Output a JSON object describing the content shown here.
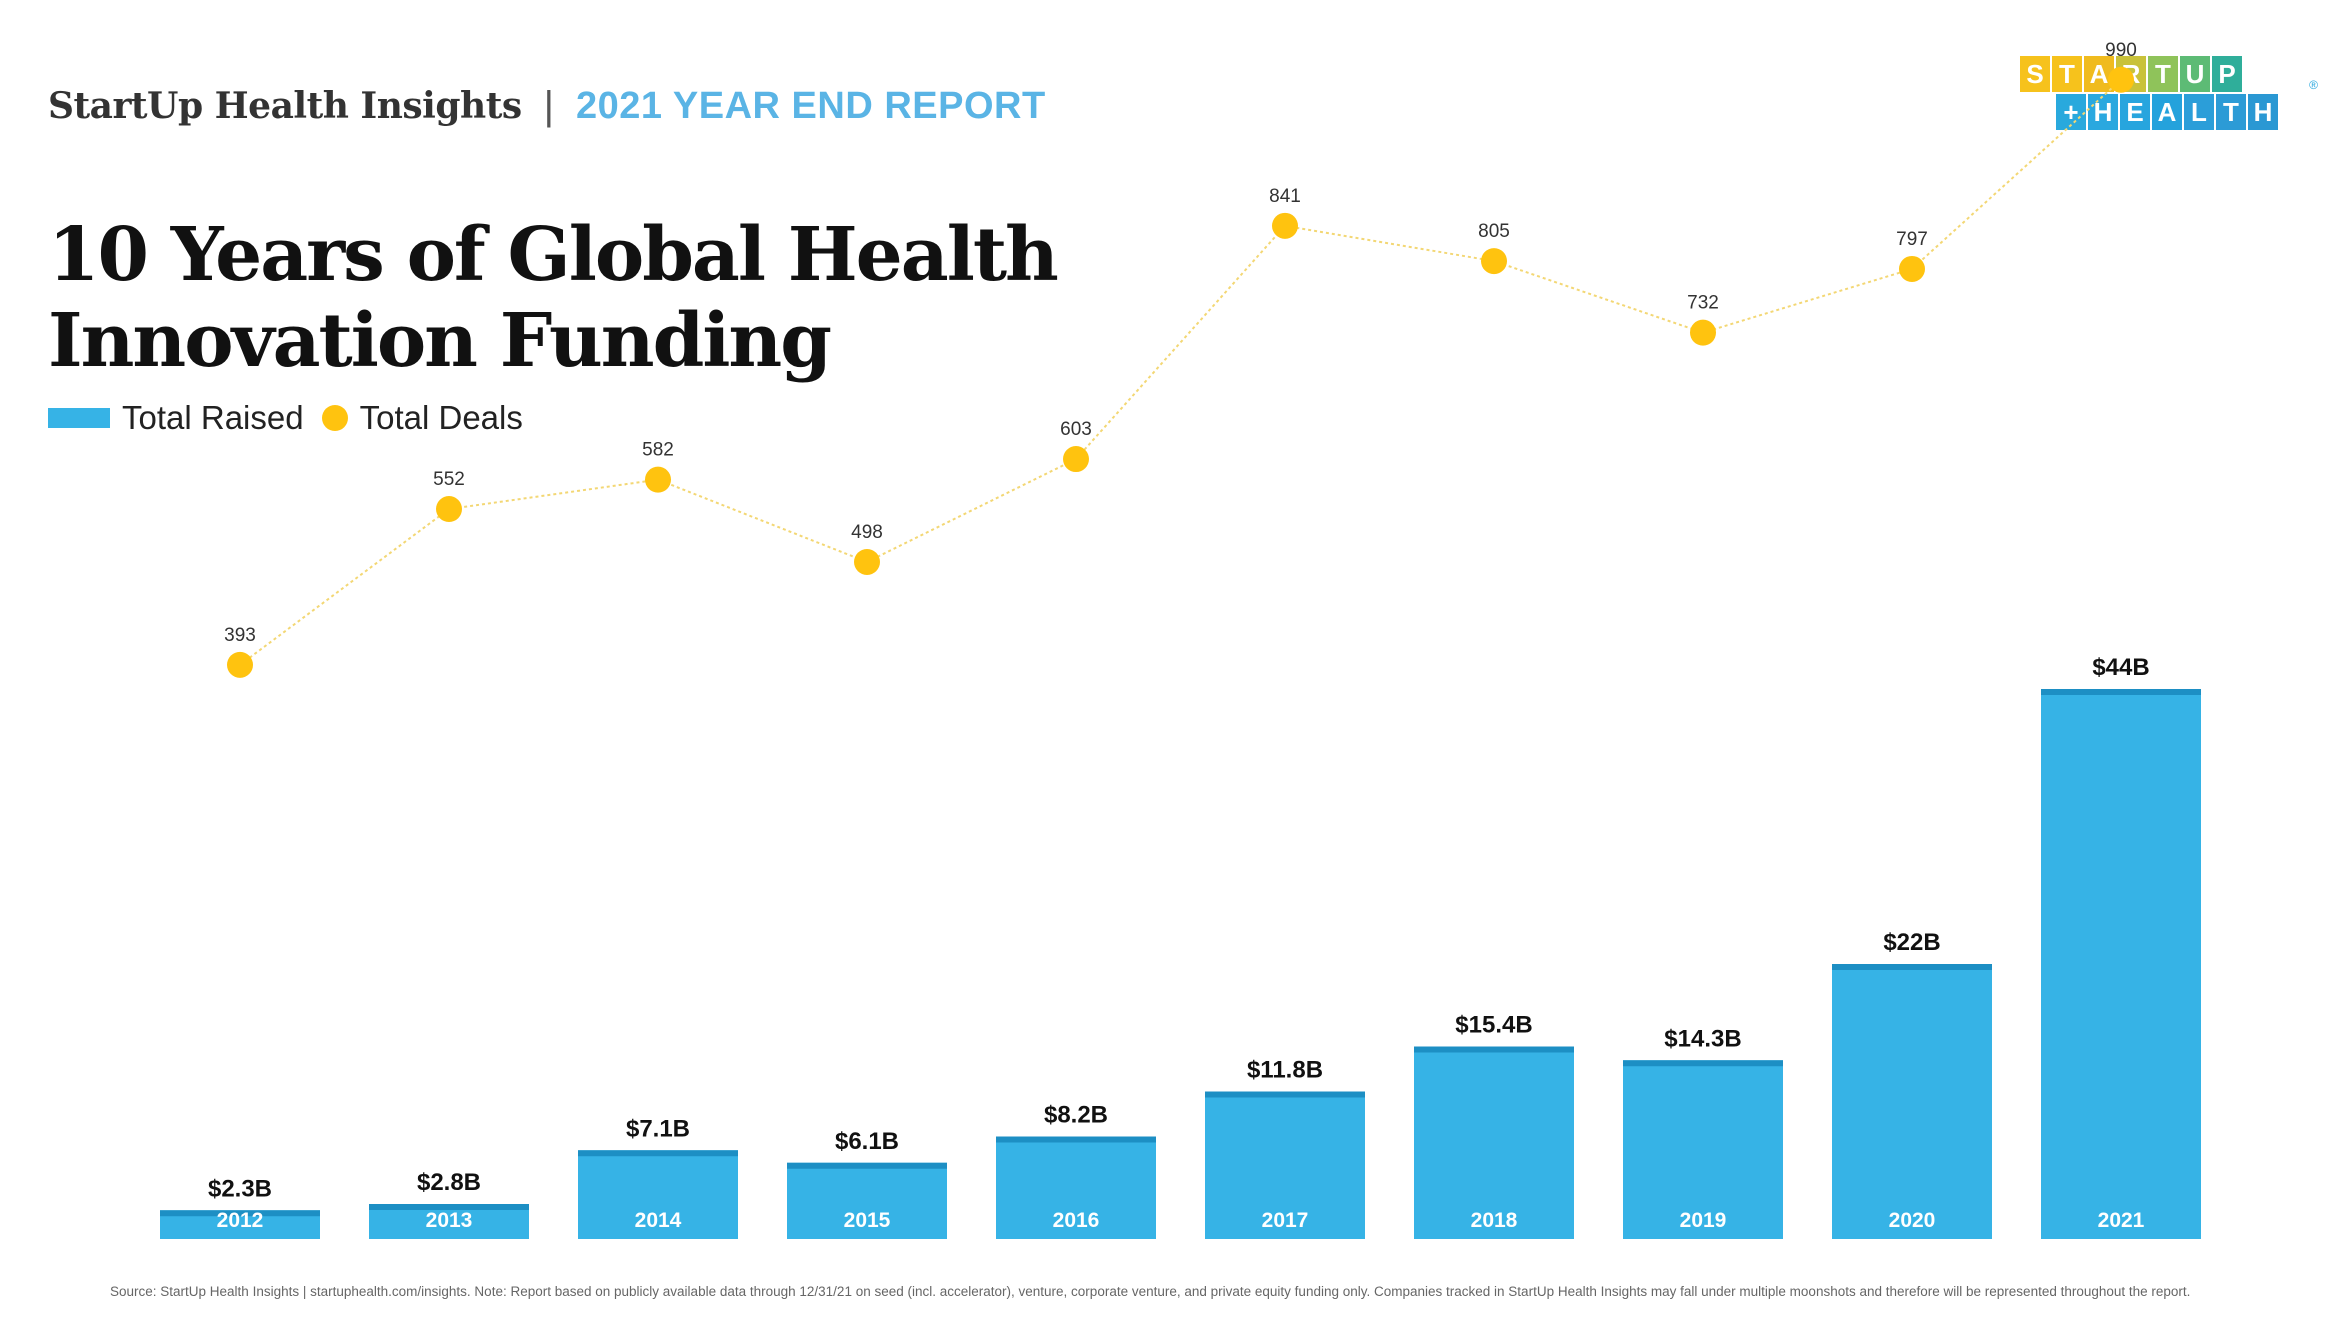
{
  "header": {
    "brand": "StartUp Health Insights",
    "separator": "|",
    "report": "2021 YEAR END REPORT"
  },
  "logo": {
    "row1": [
      "S",
      "T",
      "A",
      "R",
      "T",
      "U",
      "P"
    ],
    "row2": [
      "+",
      "H",
      "E",
      "A",
      "L",
      "T",
      "H"
    ],
    "registered": "®",
    "row1_colors": [
      "#f6c21c",
      "#f6c21c",
      "#f0bb1e",
      "#c9c23a",
      "#8fc35a",
      "#5dbb75",
      "#2fae9a"
    ],
    "row2_colors": [
      "#29a9dd",
      "#2aa8df",
      "#27a5de",
      "#24a2dc",
      "#2b9ed9",
      "#2c9bd6",
      "#2a98d3"
    ]
  },
  "title_line1": "10 Years of Global Health",
  "title_line2": "Innovation Funding",
  "legend": {
    "raised": "Total Raised",
    "deals": "Total Deals"
  },
  "colors": {
    "bar": "#36b3e6",
    "bar_top": "#1d8fc4",
    "deal_dot": "#ffc30f",
    "deal_line": "#f3d774",
    "report": "#5ab4e5"
  },
  "chart_data": {
    "type": "bar",
    "categories": [
      "2012",
      "2013",
      "2014",
      "2015",
      "2016",
      "2017",
      "2018",
      "2019",
      "2020",
      "2021"
    ],
    "series": [
      {
        "name": "Total Raised",
        "type": "bar",
        "values": [
          2.3,
          2.8,
          7.1,
          6.1,
          8.2,
          11.8,
          15.4,
          14.3,
          22,
          44
        ],
        "labels": [
          "$2.3B",
          "$2.8B",
          "$7.1B",
          "$6.1B",
          "$8.2B",
          "$11.8B",
          "$15.4B",
          "$14.3B",
          "$22B",
          "$44B"
        ],
        "unit": "$B"
      },
      {
        "name": "Total Deals",
        "type": "line",
        "values": [
          393,
          552,
          582,
          498,
          603,
          841,
          805,
          732,
          797,
          990
        ]
      }
    ],
    "grid": false,
    "legend_position": "top-left"
  },
  "footnote": "Source: StartUp Health Insights | startuphealth.com/insights. Note: Report based on publicly available data through 12/31/21 on seed (incl. accelerator), venture, corporate venture, and private equity funding only. Companies tracked in StartUp Health Insights may fall under multiple moonshots and therefore will be represented throughout the report."
}
